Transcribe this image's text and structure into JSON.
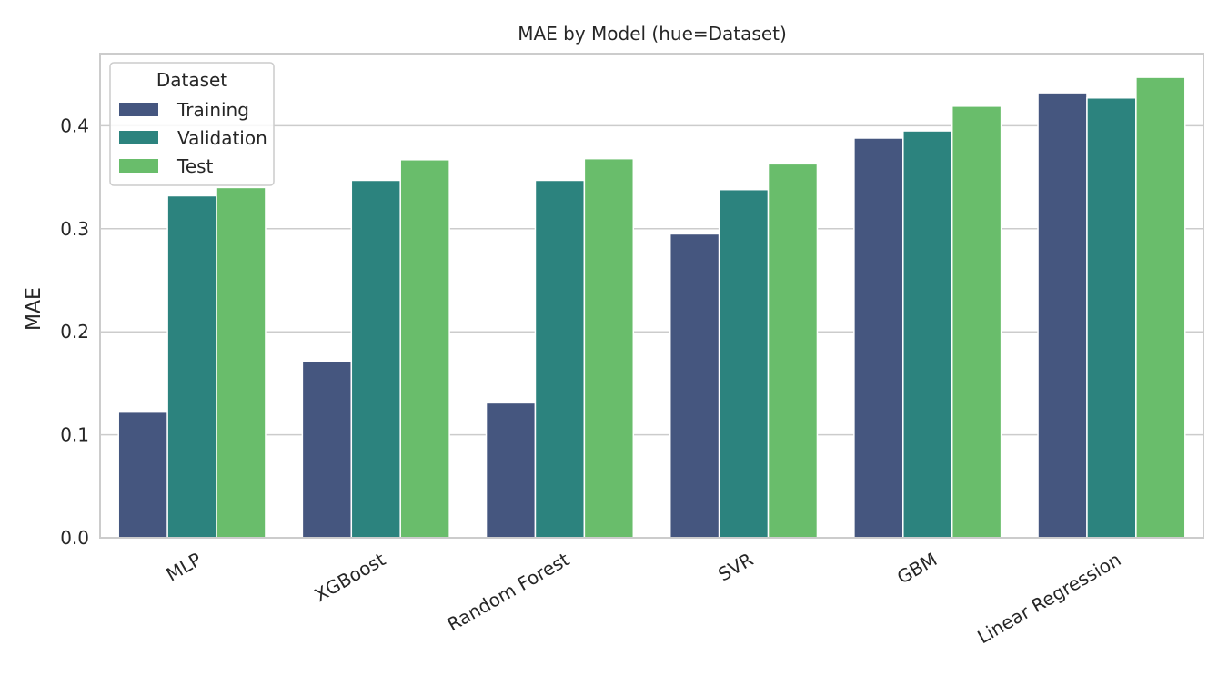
{
  "chart_data": {
    "type": "bar",
    "title": "MAE by Model (hue=Dataset)",
    "xlabel": "",
    "ylabel": "MAE",
    "ylim": [
      0,
      0.47
    ],
    "yticks": [
      0.0,
      0.1,
      0.2,
      0.3,
      0.4
    ],
    "ytick_labels": [
      "0.0",
      "0.1",
      "0.2",
      "0.3",
      "0.4"
    ],
    "categories": [
      "MLP",
      "XGBoost",
      "Random Forest",
      "SVR",
      "GBM",
      "Linear Regression"
    ],
    "series": [
      {
        "name": "Training",
        "color": "#45567f",
        "values": [
          0.122,
          0.171,
          0.131,
          0.295,
          0.388,
          0.432
        ]
      },
      {
        "name": "Validation",
        "color": "#2c837e",
        "values": [
          0.332,
          0.347,
          0.347,
          0.338,
          0.395,
          0.427
        ]
      },
      {
        "name": "Test",
        "color": "#69bd6b",
        "values": [
          0.34,
          0.367,
          0.368,
          0.363,
          0.419,
          0.447
        ]
      }
    ],
    "grid": {
      "y": true,
      "x": false
    },
    "legend": {
      "title": "Dataset",
      "placement": "upper-left"
    }
  }
}
